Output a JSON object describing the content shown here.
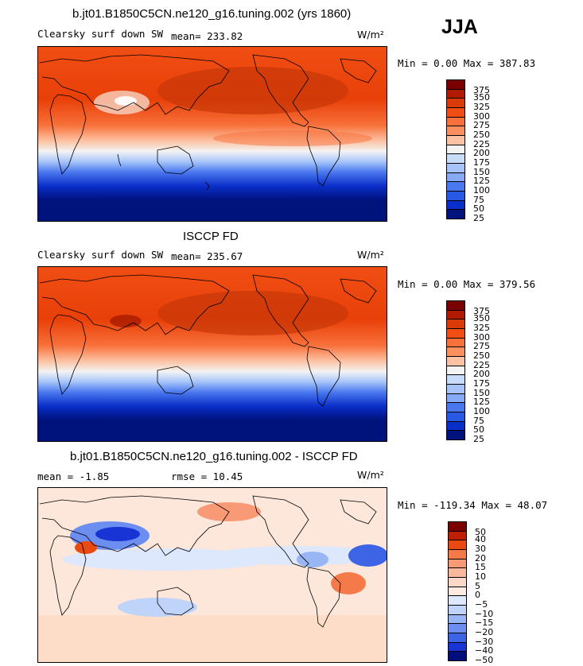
{
  "season": "JJA",
  "units": "W/m²",
  "panels": [
    {
      "id": "model",
      "header": "b.jt01.B1850C5CN.ne120_g16.tuning.002 (yrs 1860)",
      "label": "Clearsky surf down SW",
      "stat": "mean= 233.82",
      "range": "Min =   0.00 Max = 387.83",
      "levels": [
        "375",
        "350",
        "325",
        "300",
        "275",
        "250",
        "225",
        "200",
        "175",
        "150",
        "125",
        "100",
        "75",
        "50",
        "25"
      ]
    },
    {
      "id": "obs",
      "header": "ISCCP FD",
      "label": "Clearsky surf down SW",
      "stat": "mean= 235.67",
      "range": "Min =   0.00 Max = 379.56",
      "levels": [
        "375",
        "350",
        "325",
        "300",
        "275",
        "250",
        "225",
        "200",
        "175",
        "150",
        "125",
        "100",
        "75",
        "50",
        "25"
      ]
    },
    {
      "id": "diff",
      "header": "b.jt01.B1850C5CN.ne120_g16.tuning.002 - ISCCP FD",
      "label": "mean =  -1.85",
      "stat": "rmse =  10.45",
      "range": "Min = -119.34 Max =  48.07",
      "levels": [
        "50",
        "40",
        "30",
        "20",
        "15",
        "10",
        "5",
        "0",
        "−5",
        "−10",
        "−15",
        "−20",
        "−30",
        "−40",
        "−50"
      ]
    }
  ],
  "chart_data": [
    {
      "type": "heatmap",
      "title": "b.jt01.B1850C5CN.ne120_g16.tuning.002 (yrs 1860)",
      "variable": "Clearsky surf down SW",
      "season": "JJA",
      "mean": 233.82,
      "min": 0.0,
      "max": 387.83,
      "units": "W/m2",
      "contour_levels": [
        25,
        50,
        75,
        100,
        125,
        150,
        175,
        200,
        225,
        250,
        275,
        300,
        325,
        350,
        375
      ]
    },
    {
      "type": "heatmap",
      "title": "ISCCP FD",
      "variable": "Clearsky surf down SW",
      "season": "JJA",
      "mean": 235.67,
      "min": 0.0,
      "max": 379.56,
      "units": "W/m2",
      "contour_levels": [
        25,
        50,
        75,
        100,
        125,
        150,
        175,
        200,
        225,
        250,
        275,
        300,
        325,
        350,
        375
      ]
    },
    {
      "type": "heatmap",
      "title": "b.jt01.B1850C5CN.ne120_g16.tuning.002 - ISCCP FD",
      "season": "JJA",
      "mean": -1.85,
      "rmse": 10.45,
      "min": -119.34,
      "max": 48.07,
      "units": "W/m2",
      "contour_levels": [
        -50,
        -40,
        -30,
        -20,
        -15,
        -10,
        -5,
        0,
        5,
        10,
        15,
        20,
        30,
        40,
        50
      ]
    }
  ],
  "colors": {
    "abs_scale": [
      "#7a0000",
      "#b01a00",
      "#d83a08",
      "#f04e14",
      "#f8703a",
      "#fa9060",
      "#fcc2a2",
      "#f3f3f3",
      "#c8dcfc",
      "#a6c4fa",
      "#86aaf6",
      "#4a78ee",
      "#2858e4",
      "#0a2ec8",
      "#00127c"
    ],
    "diff_scale": [
      "#7a0000",
      "#c01e00",
      "#e84a12",
      "#f47a4a",
      "#f89a76",
      "#fcb89a",
      "#fcd8c6",
      "#fdeae0",
      "#dde8fc",
      "#c0d4fa",
      "#98b6f4",
      "#6c8ef0",
      "#3e64e6",
      "#1834d4",
      "#000e7c"
    ]
  }
}
